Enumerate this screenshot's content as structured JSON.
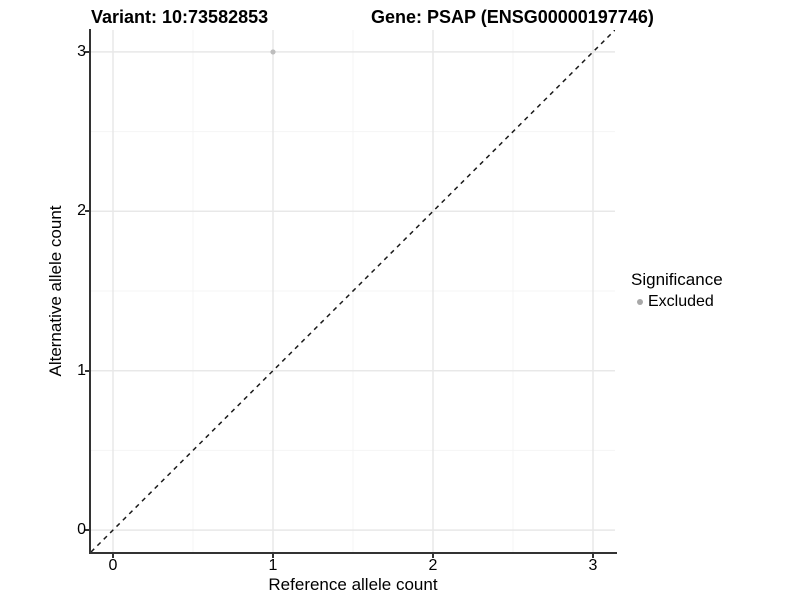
{
  "chart_data": {
    "type": "scatter",
    "title_left": "Variant: 10:73582853",
    "title_right": "Gene: PSAP (ENSG00000197746)",
    "xlabel": "Reference allele count",
    "ylabel": "Alternative allele count",
    "x_ticks": [
      0,
      1,
      2,
      3
    ],
    "y_ticks": [
      0,
      1,
      2,
      3
    ],
    "x_minor_ticks": [
      0.5,
      1.5,
      2.5
    ],
    "y_minor_ticks": [
      0.5,
      1.5,
      2.5
    ],
    "xlim": [
      -0.1375,
      3.1375
    ],
    "ylim": [
      -0.1375,
      3.1375
    ],
    "grid": "major-and-minor",
    "points": [
      {
        "x": 1,
        "y": 3,
        "significance": "Excluded"
      }
    ],
    "abline": {
      "slope": 1,
      "intercept": 0,
      "linetype": "dashed"
    },
    "legend": {
      "position": "right",
      "title": "Significance",
      "items": [
        {
          "label": "Excluded",
          "color": "#a8a8a8"
        }
      ]
    },
    "colors": {
      "point": "#bdbdbd",
      "grid_major": "#e8e8e8",
      "grid_minor": "#f4f4f4",
      "axis_line": "#333333",
      "dashed_line": "#1a1a1a",
      "text": "#000000",
      "background": "#ffffff"
    }
  }
}
